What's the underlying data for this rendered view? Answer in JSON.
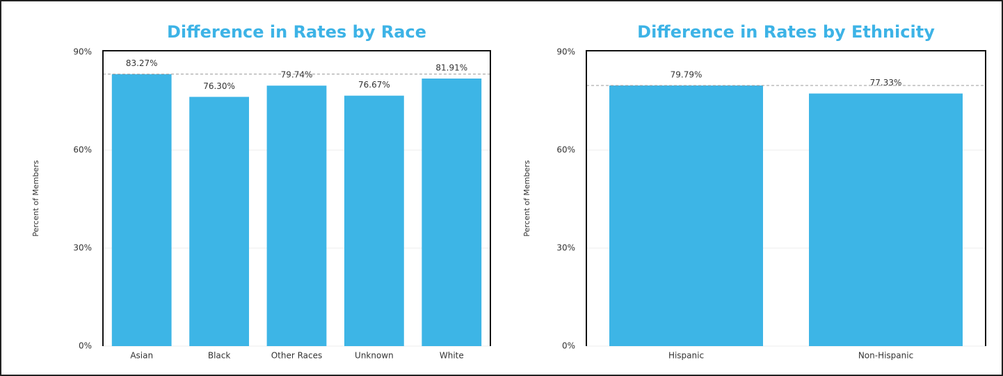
{
  "chart_data": [
    {
      "type": "bar",
      "title": "Difference in Rates by Race",
      "y_label": "Percent of Members",
      "categories": [
        "Asian",
        "Black",
        "Other Races",
        "Unknown",
        "White"
      ],
      "values": [
        83.27,
        76.3,
        79.74,
        76.67,
        81.91
      ],
      "value_labels": [
        "83.27%",
        "76.30%",
        "79.74%",
        "76.67%",
        "81.91%"
      ],
      "color": "#3db5e6",
      "ylim": [
        0,
        90
      ],
      "yticks": [
        {
          "value": 0,
          "label": "0%"
        },
        {
          "value": 30,
          "label": "30%"
        },
        {
          "value": 60,
          "label": "60%"
        },
        {
          "value": 90,
          "label": "90%"
        }
      ],
      "grid": true
    },
    {
      "type": "bar",
      "title": "Difference in Rates by Ethnicity",
      "y_label": "Percent of Members",
      "categories": [
        "Hispanic",
        "Non-Hispanic"
      ],
      "values": [
        79.79,
        77.33
      ],
      "value_labels": [
        "79.79%",
        "77.33%"
      ],
      "color": "#3db5e6",
      "ylim": [
        0,
        90
      ],
      "yticks": [
        {
          "value": 0,
          "label": "0%"
        },
        {
          "value": 30,
          "label": "30%"
        },
        {
          "value": 60,
          "label": "60%"
        },
        {
          "value": 90,
          "label": "90%"
        }
      ],
      "grid": true
    }
  ]
}
